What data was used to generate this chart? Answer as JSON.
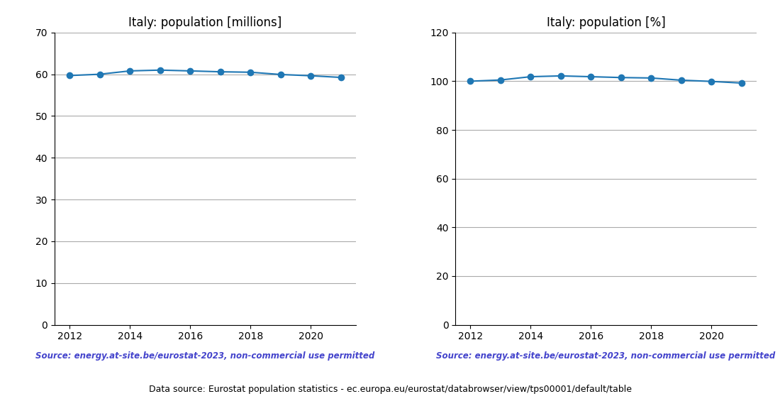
{
  "years": [
    2012,
    2013,
    2014,
    2015,
    2016,
    2017,
    2018,
    2019,
    2020,
    2021
  ],
  "pop_millions": [
    59.69,
    60.0,
    60.8,
    60.99,
    60.8,
    60.59,
    60.48,
    59.94,
    59.64,
    59.24
  ],
  "pop_percent": [
    100.0,
    100.5,
    101.85,
    102.18,
    101.85,
    101.5,
    101.32,
    100.42,
    99.92,
    99.24
  ],
  "title1": "Italy: population [millions]",
  "title2": "Italy: population [%]",
  "source_text": "Source: energy.at-site.be/eurostat-2023, non-commercial use permitted",
  "footer_text": "Data source: Eurostat population statistics - ec.europa.eu/eurostat/databrowser/view/tps00001/default/table",
  "line_color": "#1f77b4",
  "source_color": "#4444cc",
  "ylim1": [
    0,
    70
  ],
  "ylim2": [
    0,
    120
  ],
  "yticks1": [
    0,
    10,
    20,
    30,
    40,
    50,
    60,
    70
  ],
  "yticks2": [
    0,
    20,
    40,
    60,
    80,
    100,
    120
  ],
  "grid_color": "#aaaaaa",
  "background_color": "#ffffff"
}
